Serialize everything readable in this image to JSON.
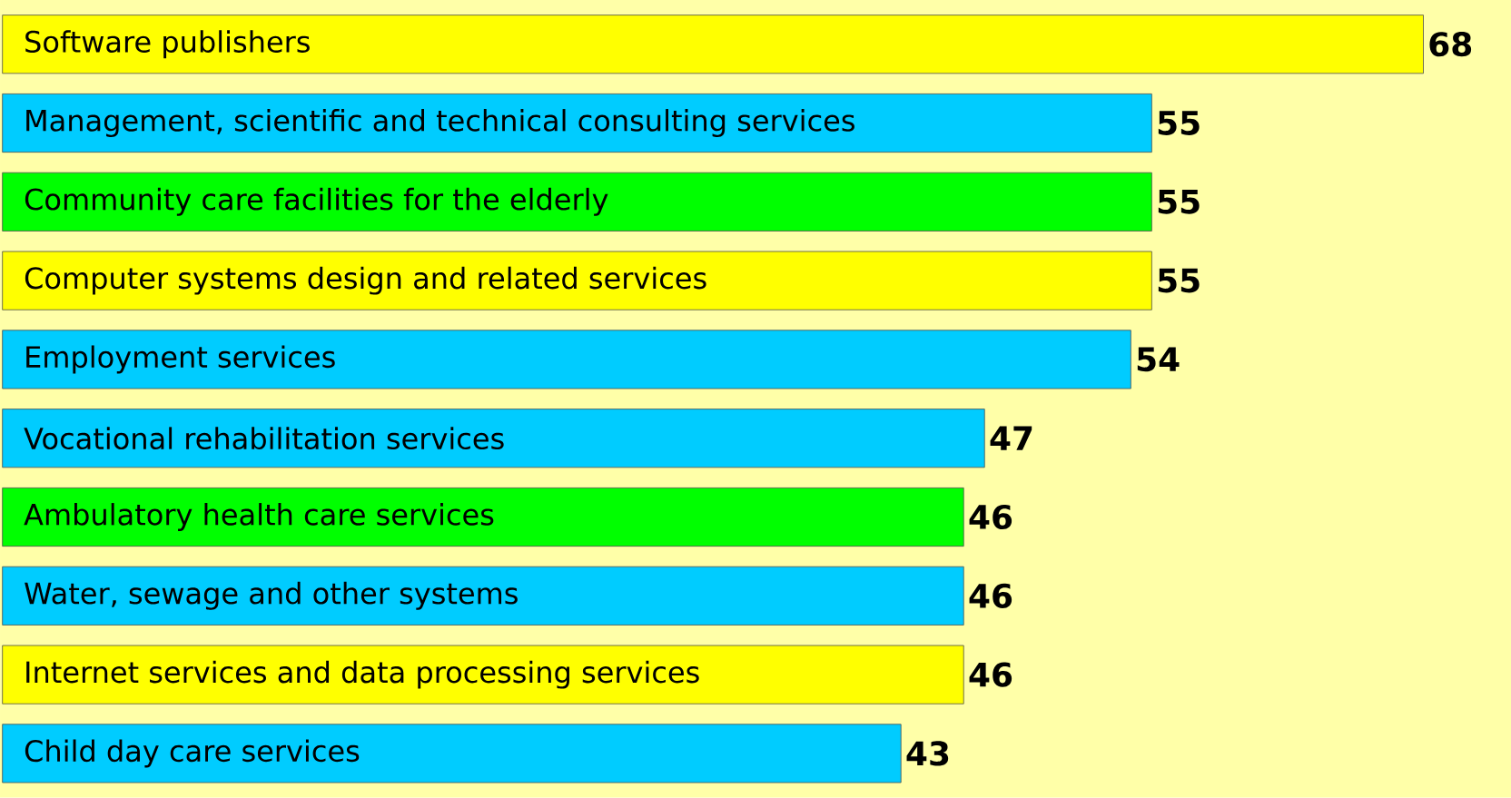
{
  "chart_data": {
    "type": "bar",
    "orientation": "horizontal",
    "data_labels": true,
    "categories": [
      "Software publishers",
      "Management, scientific and technical consulting services",
      "Community care facilities for the elderly",
      "Computer systems design and related services",
      "Employment services",
      "Vocational rehabilitation services",
      "Ambulatory health care services",
      "Water, sewage and other systems",
      "Internet services and data processing services",
      "Child day care services"
    ],
    "values": [
      68,
      55,
      55,
      55,
      54,
      47,
      46,
      46,
      46,
      43
    ],
    "colors": [
      "#ffff00",
      "#00ccff",
      "#00ff00",
      "#ffff00",
      "#00ccff",
      "#00ccff",
      "#00ff00",
      "#00ccff",
      "#ffff00",
      "#00ccff"
    ]
  }
}
